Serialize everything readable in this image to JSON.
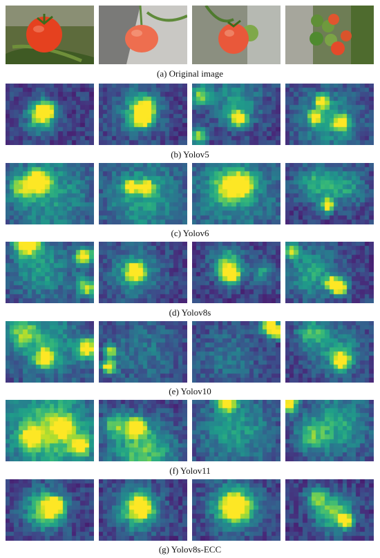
{
  "figure": {
    "rows": [
      {
        "caption": "(a) Original image",
        "kind": "photo"
      },
      {
        "caption": "(b) Yolov5",
        "kind": "heatmap",
        "hotspots": [
          [
            [
              0.44,
              0.45,
              0.07,
              1.0
            ],
            [
              0.4,
              0.55,
              0.12,
              0.55
            ]
          ],
          [
            [
              0.53,
              0.4,
              0.07,
              0.95
            ],
            [
              0.5,
              0.58,
              0.07,
              0.9
            ],
            [
              0.45,
              0.45,
              0.18,
              0.4
            ]
          ],
          [
            [
              0.53,
              0.58,
              0.06,
              0.95
            ],
            [
              0.1,
              0.2,
              0.08,
              0.6
            ],
            [
              0.08,
              0.85,
              0.06,
              0.7
            ],
            [
              0.5,
              0.3,
              0.2,
              0.35
            ]
          ],
          [
            [
              0.42,
              0.3,
              0.05,
              0.9
            ],
            [
              0.33,
              0.55,
              0.05,
              0.85
            ],
            [
              0.64,
              0.65,
              0.06,
              0.85
            ],
            [
              0.5,
              0.6,
              0.25,
              0.35
            ]
          ]
        ]
      },
      {
        "caption": "(c) Yolov6",
        "kind": "heatmap",
        "hotspots": [
          [
            [
              0.38,
              0.3,
              0.08,
              1.0
            ],
            [
              0.5,
              0.5,
              0.35,
              0.35
            ],
            [
              0.2,
              0.4,
              0.1,
              0.5
            ]
          ],
          [
            [
              0.37,
              0.4,
              0.05,
              0.95
            ],
            [
              0.54,
              0.4,
              0.05,
              0.9
            ],
            [
              0.5,
              0.55,
              0.3,
              0.4
            ]
          ],
          [
            [
              0.57,
              0.36,
              0.08,
              1.0
            ],
            [
              0.42,
              0.4,
              0.12,
              0.6
            ],
            [
              0.5,
              0.5,
              0.4,
              0.3
            ]
          ],
          [
            [
              0.48,
              0.7,
              0.05,
              0.9
            ],
            [
              0.35,
              0.35,
              0.15,
              0.45
            ],
            [
              0.7,
              0.4,
              0.15,
              0.35
            ]
          ]
        ]
      },
      {
        "caption": "(d) Yolov8s",
        "kind": "heatmap",
        "hotspots": [
          [
            [
              0.25,
              0.02,
              0.1,
              1.0
            ],
            [
              0.9,
              0.25,
              0.07,
              0.95
            ],
            [
              0.92,
              0.75,
              0.08,
              0.7
            ],
            [
              0.4,
              0.45,
              0.25,
              0.35
            ]
          ],
          [
            [
              0.42,
              0.5,
              0.07,
              0.95
            ],
            [
              0.4,
              0.5,
              0.2,
              0.35
            ]
          ],
          [
            [
              0.44,
              0.55,
              0.07,
              1.0
            ],
            [
              0.4,
              0.35,
              0.12,
              0.55
            ],
            [
              0.8,
              0.5,
              0.1,
              0.35
            ]
          ],
          [
            [
              0.62,
              0.75,
              0.06,
              1.0
            ],
            [
              0.53,
              0.68,
              0.05,
              0.85
            ],
            [
              0.08,
              0.15,
              0.06,
              0.7
            ],
            [
              0.3,
              0.5,
              0.2,
              0.4
            ]
          ]
        ]
      },
      {
        "caption": "(e) Yolov10",
        "kind": "heatmap",
        "hotspots": [
          [
            [
              0.93,
              0.45,
              0.07,
              1.0
            ],
            [
              0.45,
              0.6,
              0.07,
              0.85
            ],
            [
              0.2,
              0.2,
              0.12,
              0.5
            ],
            [
              0.5,
              0.4,
              0.3,
              0.35
            ]
          ],
          [
            [
              0.12,
              0.75,
              0.05,
              1.0
            ],
            [
              0.14,
              0.5,
              0.05,
              0.7
            ],
            [
              0.5,
              0.5,
              0.3,
              0.2
            ]
          ],
          [
            [
              0.88,
              0.08,
              0.07,
              1.0
            ],
            [
              0.95,
              0.2,
              0.05,
              0.7
            ],
            [
              0.4,
              0.6,
              0.25,
              0.2
            ]
          ],
          [
            [
              0.64,
              0.65,
              0.06,
              1.0
            ],
            [
              0.3,
              0.2,
              0.12,
              0.45
            ],
            [
              0.6,
              0.5,
              0.2,
              0.35
            ]
          ]
        ]
      },
      {
        "caption": "(f) Yolov11",
        "kind": "heatmap",
        "hotspots": [
          [
            [
              0.5,
              0.5,
              0.35,
              0.6
            ],
            [
              0.85,
              0.75,
              0.08,
              0.8
            ],
            [
              0.3,
              0.6,
              0.08,
              0.75
            ],
            [
              0.65,
              0.45,
              0.08,
              0.7
            ]
          ],
          [
            [
              0.43,
              0.45,
              0.07,
              1.0
            ],
            [
              0.5,
              0.85,
              0.25,
              0.55
            ],
            [
              0.2,
              0.4,
              0.1,
              0.5
            ]
          ],
          [
            [
              0.4,
              0.05,
              0.07,
              0.95
            ],
            [
              0.5,
              0.5,
              0.3,
              0.35
            ]
          ],
          [
            [
              0.05,
              0.08,
              0.06,
              1.0
            ],
            [
              0.6,
              0.4,
              0.25,
              0.4
            ],
            [
              0.3,
              0.6,
              0.12,
              0.4
            ]
          ]
        ]
      },
      {
        "caption": "(g) Yolov8s-ECC",
        "kind": "heatmap",
        "hotspots": [
          [
            [
              0.55,
              0.45,
              0.07,
              1.0
            ],
            [
              0.45,
              0.5,
              0.16,
              0.65
            ]
          ],
          [
            [
              0.48,
              0.45,
              0.07,
              1.0
            ],
            [
              0.45,
              0.5,
              0.16,
              0.65
            ]
          ],
          [
            [
              0.5,
              0.45,
              0.08,
              1.0
            ],
            [
              0.48,
              0.45,
              0.18,
              0.7
            ]
          ],
          [
            [
              0.68,
              0.68,
              0.05,
              1.0
            ],
            [
              0.55,
              0.55,
              0.14,
              0.65
            ],
            [
              0.35,
              0.3,
              0.08,
              0.5
            ]
          ]
        ]
      }
    ],
    "viridis": [
      "#440154",
      "#482878",
      "#3e4989",
      "#31688e",
      "#26828e",
      "#1f9e89",
      "#35b779",
      "#6ece58",
      "#b5de2b",
      "#fde725"
    ]
  }
}
